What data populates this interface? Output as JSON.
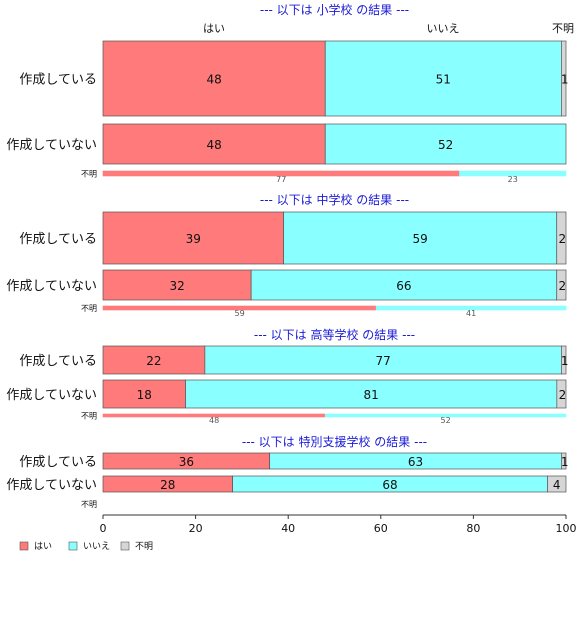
{
  "colors": {
    "yes": "#ff7a7a",
    "no": "#8affff",
    "unknown": "#d6d6d6",
    "title": "#1a1ad8"
  },
  "chart_data": {
    "type": "bar",
    "orientation": "horizontal-stacked-percent",
    "xlim": [
      0,
      100
    ],
    "xticks": [
      0,
      20,
      40,
      60,
      80,
      100
    ],
    "column_headers": [
      "はい",
      "いいえ",
      "不明"
    ],
    "legend": {
      "placement": "bottom-left",
      "entries": [
        "はい",
        "いいえ",
        "不明"
      ]
    },
    "groups": [
      {
        "title": "--- 以下は 小学校 の結果 ---",
        "rows": [
          {
            "label": "作成している",
            "values": [
              48,
              51,
              1
            ]
          },
          {
            "label": "作成していない",
            "values": [
              48,
              52,
              0
            ]
          },
          {
            "label": "不明",
            "values": [
              77,
              23,
              0
            ]
          }
        ]
      },
      {
        "title": "--- 以下は 中学校 の結果 ---",
        "rows": [
          {
            "label": "作成している",
            "values": [
              39,
              59,
              2
            ]
          },
          {
            "label": "作成していない",
            "values": [
              32,
              66,
              2
            ]
          },
          {
            "label": "不明",
            "values": [
              59,
              41,
              0
            ]
          }
        ]
      },
      {
        "title": "--- 以下は 高等学校 の結果 ---",
        "rows": [
          {
            "label": "作成している",
            "values": [
              22,
              77,
              1
            ]
          },
          {
            "label": "作成していない",
            "values": [
              18,
              81,
              2
            ]
          },
          {
            "label": "不明",
            "values": [
              48,
              52,
              0
            ]
          }
        ]
      },
      {
        "title": "--- 以下は 特別支援学校 の結果 ---",
        "rows": [
          {
            "label": "作成している",
            "values": [
              36,
              63,
              1
            ]
          },
          {
            "label": "作成していない",
            "values": [
              28,
              68,
              4
            ]
          },
          {
            "label": "不明",
            "values": []
          }
        ]
      }
    ]
  }
}
